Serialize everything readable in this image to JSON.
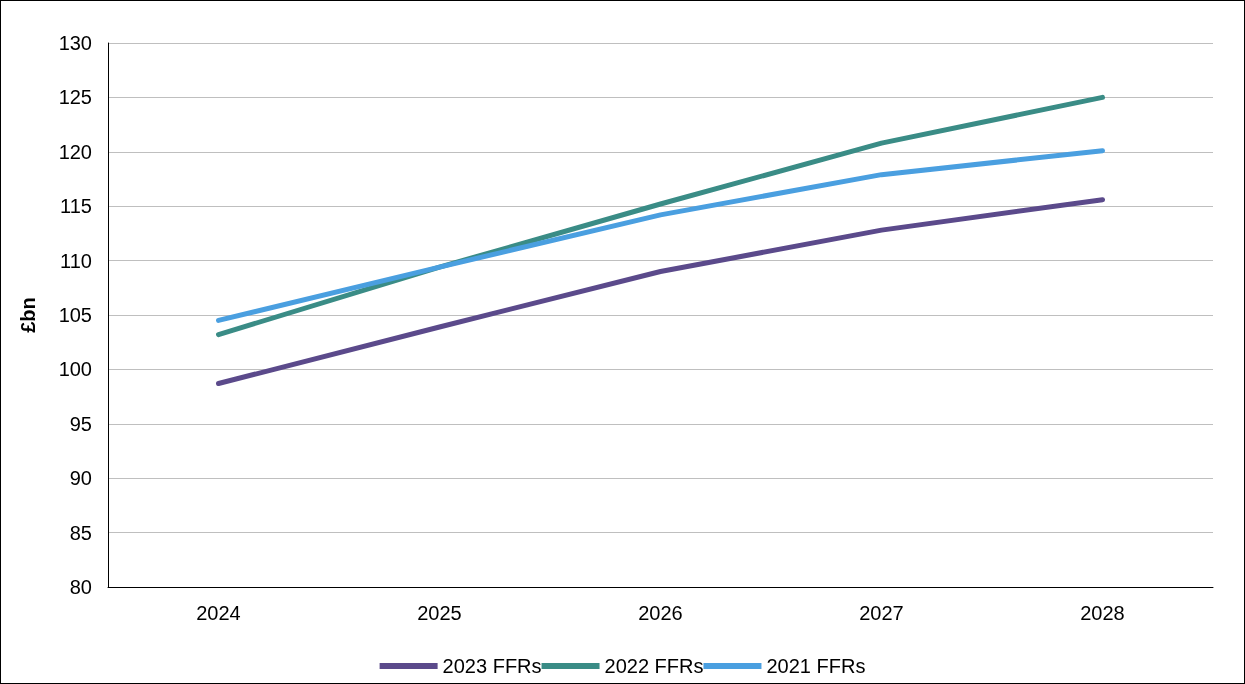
{
  "chart_data": {
    "type": "line",
    "ylabel": "£bn",
    "categories": [
      "2024",
      "2025",
      "2026",
      "2027",
      "2028"
    ],
    "series": [
      {
        "name": "2023 FFRs",
        "color": "#5b4a8b",
        "values": [
          98.7,
          103.9,
          109.0,
          112.8,
          115.6
        ]
      },
      {
        "name": "2022 FFRs",
        "color": "#3a8c86",
        "values": [
          103.2,
          109.4,
          115.2,
          120.8,
          125.0
        ]
      },
      {
        "name": "2021 FFRs",
        "color": "#4a9fe0",
        "values": [
          104.5,
          109.4,
          114.2,
          117.9,
          120.1
        ]
      }
    ],
    "ylim": [
      80,
      130
    ],
    "yticks": [
      80,
      85,
      90,
      95,
      100,
      105,
      110,
      115,
      120,
      125,
      130
    ],
    "grid": "y",
    "legend": "bottom",
    "marker": "none",
    "line_style": "solid"
  }
}
